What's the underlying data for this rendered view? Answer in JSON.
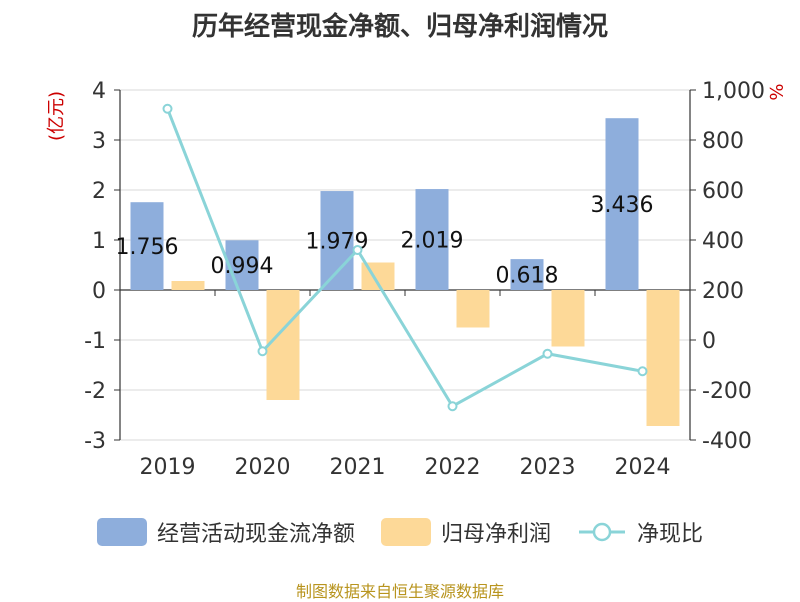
{
  "title": "历年经营现金净额、归母净利润情况",
  "source": "制图数据来自恒生聚源数据库",
  "colors": {
    "cash": "#8eaedc",
    "profit": "#fdd998",
    "ratio": "#8ad4d8",
    "unit": "#cc0000"
  },
  "chart_data": {
    "type": "bar",
    "categories": [
      "2019",
      "2020",
      "2021",
      "2022",
      "2023",
      "2024"
    ],
    "left_axis": {
      "unit": "(亿元)",
      "ylim": [
        -3,
        4
      ],
      "ticks": [
        "4",
        "3",
        "2",
        "1",
        "0",
        "-1",
        "-2",
        "-3"
      ]
    },
    "right_axis": {
      "unit": "%",
      "ylim": [
        -400,
        1000
      ],
      "ticks": [
        "1,000",
        "800",
        "600",
        "400",
        "200",
        "0",
        "-200",
        "-400"
      ]
    },
    "series": [
      {
        "name": "经营活动现金流净额",
        "type": "bar",
        "axis": "left",
        "values": [
          1.756,
          0.994,
          1.979,
          2.019,
          0.618,
          3.436
        ],
        "labels": [
          "1.756",
          "0.994",
          "1.979",
          "2.019",
          "0.618",
          "3.436"
        ]
      },
      {
        "name": "归母净利润",
        "type": "bar",
        "axis": "left",
        "values": [
          0.18,
          -2.2,
          0.55,
          -0.75,
          -1.13,
          -2.72
        ]
      },
      {
        "name": "净现比",
        "type": "line",
        "axis": "right",
        "values": [
          925,
          -45,
          360,
          -265,
          -55,
          -125
        ]
      }
    ],
    "legend_position": "bottom",
    "grid": true
  }
}
